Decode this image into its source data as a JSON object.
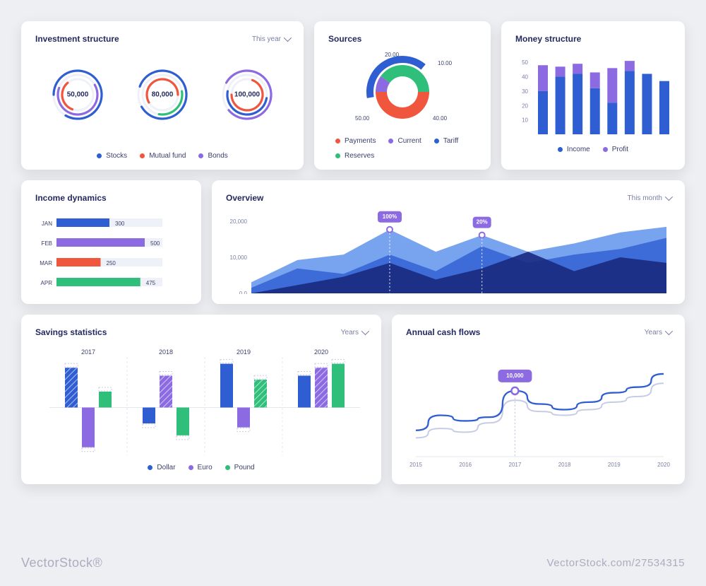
{
  "colors": {
    "bg": "#eeeff2",
    "card_bg": "#ffffff",
    "title": "#242a5e",
    "muted": "#7a7fa2",
    "grid": "#e5e7ef",
    "blue": "#2e5ed2",
    "blue_light": "#3f7ee8",
    "purple": "#8c6ae2",
    "purple_light": "#b79bf0",
    "green": "#2fbf7b",
    "red": "#f0553d",
    "navy": "#1a2a80",
    "callout": "#8c6ae2"
  },
  "investment": {
    "title": "Investment structure",
    "period": "This year",
    "gauges": [
      {
        "value": "50,000",
        "arcs": [
          {
            "color": "#2e5ed2",
            "r": 34,
            "start": -90,
            "span": 300
          },
          {
            "color": "#8c6ae2",
            "r": 28,
            "start": 60,
            "span": 230
          },
          {
            "color": "#f0553d",
            "r": 22,
            "start": 200,
            "span": 120
          }
        ]
      },
      {
        "value": "80,000",
        "arcs": [
          {
            "color": "#2e5ed2",
            "r": 34,
            "start": -70,
            "span": 310
          },
          {
            "color": "#2fbf7b",
            "r": 28,
            "start": 80,
            "span": 110
          },
          {
            "color": "#f0553d",
            "r": 22,
            "start": -120,
            "span": 210
          }
        ]
      },
      {
        "value": "100,000",
        "arcs": [
          {
            "color": "#8c6ae2",
            "r": 34,
            "start": -60,
            "span": 290
          },
          {
            "color": "#2e5ed2",
            "r": 28,
            "start": 100,
            "span": 180
          },
          {
            "color": "#f0553d",
            "r": 22,
            "start": 20,
            "span": 250
          }
        ]
      }
    ],
    "legend": [
      {
        "color": "#2e5ed2",
        "label": "Stocks"
      },
      {
        "color": "#f0553d",
        "label": "Mutual fund"
      },
      {
        "color": "#8c6ae2",
        "label": "Bonds"
      }
    ]
  },
  "sources": {
    "title": "Sources",
    "slices": [
      {
        "label": "10.00",
        "value": 10,
        "color": "#8c6ae2"
      },
      {
        "label": "40.00",
        "value": 40,
        "color": "#2fbf7b"
      },
      {
        "label": "50.00",
        "value": 50,
        "color": "#f0553d"
      }
    ],
    "outer_label": "20.00",
    "shown_labels": [
      "20.00",
      "10.00",
      "40.00",
      "50.00"
    ],
    "outer_color": "#2e5ed2",
    "outer_span_deg": 140,
    "legend": [
      {
        "color": "#f0553d",
        "label": "Payments"
      },
      {
        "color": "#8c6ae2",
        "label": "Current"
      },
      {
        "color": "#2e5ed2",
        "label": "Tariff"
      },
      {
        "color": "#2fbf7b",
        "label": "Reserves"
      }
    ]
  },
  "money": {
    "title": "Money structure",
    "yticks": [
      10,
      20,
      30,
      40,
      50
    ],
    "ymax": 55,
    "bars": [
      {
        "income": 30,
        "profit": 18
      },
      {
        "income": 40,
        "profit": 7
      },
      {
        "income": 42,
        "profit": 7
      },
      {
        "income": 32,
        "profit": 11
      },
      {
        "income": 22,
        "profit": 24
      },
      {
        "income": 44,
        "profit": 7
      },
      {
        "income": 42,
        "profit": 0
      },
      {
        "income": 37,
        "profit": 0
      }
    ],
    "legend": [
      {
        "color": "#2e5ed2",
        "label": "Income"
      },
      {
        "color": "#8c6ae2",
        "label": "Profit"
      }
    ]
  },
  "income_dynamics": {
    "title": "Income dynamics",
    "max": 600,
    "rows": [
      {
        "label": "JAN",
        "value": 300,
        "text": "300",
        "color": "#2e5ed2"
      },
      {
        "label": "FEB",
        "value": 500,
        "text": "500",
        "color": "#8c6ae2"
      },
      {
        "label": "MAR",
        "value": 250,
        "text": "250",
        "color": "#f0553d"
      },
      {
        "label": "APR",
        "value": 475,
        "text": "475",
        "color": "#2fbf7b"
      }
    ]
  },
  "overview": {
    "title": "Overview",
    "period": "This month",
    "yticks": [
      "0,0",
      "10,000",
      "20,000"
    ],
    "ymax": 26000,
    "series": [
      {
        "color": "#1a2a80",
        "opacity": 0.9,
        "points": [
          0,
          3000,
          6000,
          11000,
          5000,
          9000,
          15000,
          8000,
          13000,
          11000
        ]
      },
      {
        "color": "#2e5ed2",
        "opacity": 0.8,
        "points": [
          2000,
          9000,
          7000,
          14000,
          8000,
          17000,
          11000,
          14000,
          16000,
          20000
        ]
      },
      {
        "color": "#3f7ee8",
        "opacity": 0.7,
        "points": [
          4000,
          12000,
          14000,
          23000,
          15000,
          21000,
          15000,
          18000,
          22000,
          24000
        ]
      }
    ],
    "callouts": [
      {
        "xi": 3,
        "text": "100%"
      },
      {
        "xi": 5,
        "text": "20%"
      }
    ]
  },
  "savings": {
    "title": "Savings statistics",
    "period": "Years",
    "years": [
      "2017",
      "2018",
      "2019",
      "2020"
    ],
    "range": [
      -60,
      60
    ],
    "groups": [
      [
        {
          "v": 50,
          "color": "#2e5ed2",
          "hatch": true
        },
        {
          "v": -50,
          "color": "#8c6ae2",
          "hatch": false
        },
        {
          "v": 20,
          "color": "#2fbf7b",
          "hatch": false
        }
      ],
      [
        {
          "v": -20,
          "color": "#2e5ed2",
          "hatch": false
        },
        {
          "v": 40,
          "color": "#8c6ae2",
          "hatch": true
        },
        {
          "v": -35,
          "color": "#2fbf7b",
          "hatch": false
        }
      ],
      [
        {
          "v": 55,
          "color": "#2e5ed2",
          "hatch": false
        },
        {
          "v": -25,
          "color": "#8c6ae2",
          "hatch": false
        },
        {
          "v": 35,
          "color": "#2fbf7b",
          "hatch": true
        }
      ],
      [
        {
          "v": 40,
          "color": "#2e5ed2",
          "hatch": false
        },
        {
          "v": 50,
          "color": "#8c6ae2",
          "hatch": true
        },
        {
          "v": 55,
          "color": "#2fbf7b",
          "hatch": false
        }
      ]
    ],
    "legend": [
      {
        "color": "#2e5ed2",
        "label": "Dollar"
      },
      {
        "color": "#8c6ae2",
        "label": "Euro"
      },
      {
        "color": "#2fbf7b",
        "label": "Pound"
      }
    ]
  },
  "cashflows": {
    "title": "Annual cash flows",
    "period": "Years",
    "xticks": [
      "2015",
      "2016",
      "2017",
      "2018",
      "2019",
      "2020"
    ],
    "ymax": 100,
    "series": [
      {
        "color": "#c6cce6",
        "width": 2,
        "points": [
          20,
          30,
          26,
          36,
          60,
          48,
          44,
          50,
          58,
          64,
          78
        ]
      },
      {
        "color": "#2e5ed2",
        "width": 2.3,
        "points": [
          28,
          44,
          38,
          42,
          70,
          56,
          50,
          58,
          68,
          74,
          88
        ]
      }
    ],
    "callout": {
      "xi": 4,
      "text": "10,000"
    }
  },
  "watermark": {
    "left": "VectorStock®",
    "right": "VectorStock.com/27534315"
  }
}
